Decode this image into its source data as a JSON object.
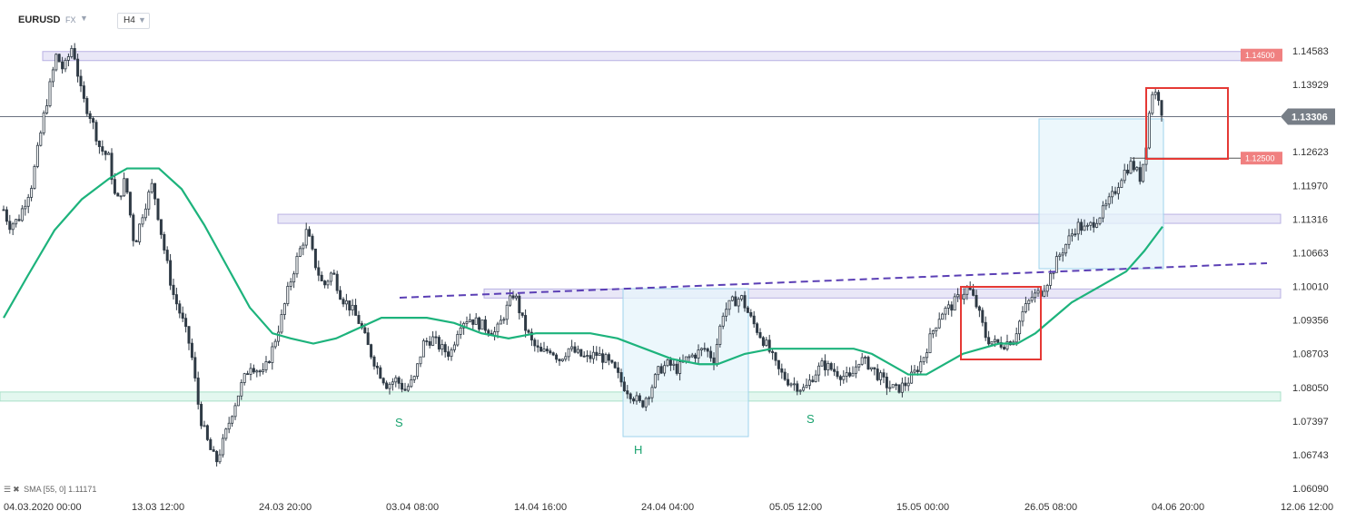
{
  "header": {
    "symbol": "EURUSD",
    "market": "FX",
    "timeframe": "H4"
  },
  "indicator": {
    "label": "SMA [55, 0] 1.11171",
    "icons": [
      "list-icon",
      "close-icon"
    ]
  },
  "colors": {
    "candle": "#2f3a45",
    "sma": "#1db37c",
    "zone_resistance": "#e9e7f7",
    "zone_support": "#e3f7ef",
    "pattern_box": "#e6f4fb",
    "highlight_box": "#e53935",
    "trendline": "#5b3fb5",
    "price_badge": "#777e87",
    "level_badge": "#f08080"
  },
  "chart_data": {
    "type": "candlestick",
    "symbol": "EURUSD",
    "timeframe": "H4",
    "ylim": [
      1.06,
      1.15
    ],
    "y_ticks": [
      "1.14583",
      "1.13929",
      "1.13306",
      "1.12623",
      "1.11970",
      "1.11316",
      "1.10663",
      "1.10010",
      "1.09356",
      "1.08703",
      "1.08050",
      "1.07397",
      "1.06743",
      "1.06090"
    ],
    "x_ticks": [
      "04.03.2020  00:00",
      "13.03  12:00",
      "24.03  20:00",
      "03.04  08:00",
      "14.04  16:00",
      "24.04  04:00",
      "05.05  12:00",
      "15.05  00:00",
      "26.05  08:00",
      "04.06  20:00",
      "12.06  12:00"
    ],
    "current_price": {
      "value": 1.13306,
      "label": "1.13306"
    },
    "levels": [
      {
        "value": 1.145,
        "label": "1.14500"
      },
      {
        "value": 1.125,
        "label": "1.12500"
      }
    ],
    "zones": [
      {
        "type": "resistance",
        "from": 1.1444,
        "to": 1.1457
      },
      {
        "type": "resistance",
        "from": 1.1129,
        "to": 1.1141
      },
      {
        "type": "resistance",
        "from": 1.0982,
        "to": 1.0996
      },
      {
        "type": "support",
        "from": 1.0779,
        "to": 1.0796
      }
    ],
    "pattern_labels": [
      "S",
      "H",
      "S"
    ],
    "pattern": "inverse head and shoulders",
    "sma_period": 55,
    "sma_last": 1.11171,
    "closes_anchor_path": [
      [
        0,
        1.117
      ],
      [
        10,
        1.112
      ],
      [
        20,
        1.113
      ],
      [
        35,
        1.12
      ],
      [
        48,
        1.133
      ],
      [
        55,
        1.139
      ],
      [
        62,
        1.145
      ],
      [
        70,
        1.142
      ],
      [
        80,
        1.147
      ],
      [
        90,
        1.137
      ],
      [
        100,
        1.133
      ],
      [
        110,
        1.127
      ],
      [
        120,
        1.125
      ],
      [
        128,
        1.116
      ],
      [
        138,
        1.121
      ],
      [
        148,
        1.108
      ],
      [
        158,
        1.115
      ],
      [
        168,
        1.12
      ],
      [
        180,
        1.108
      ],
      [
        190,
        1.099
      ],
      [
        200,
        1.094
      ],
      [
        210,
        1.088
      ],
      [
        220,
        1.075
      ],
      [
        230,
        1.069
      ],
      [
        238,
        1.066
      ],
      [
        246,
        1.07
      ],
      [
        256,
        1.076
      ],
      [
        266,
        1.081
      ],
      [
        276,
        1.085
      ],
      [
        290,
        1.083
      ],
      [
        300,
        1.088
      ],
      [
        310,
        1.094
      ],
      [
        318,
        1.1
      ],
      [
        328,
        1.106
      ],
      [
        338,
        1.111
      ],
      [
        346,
        1.105
      ],
      [
        356,
        1.1
      ],
      [
        366,
        1.103
      ],
      [
        376,
        1.098
      ],
      [
        386,
        1.096
      ],
      [
        396,
        1.093
      ],
      [
        406,
        1.088
      ],
      [
        416,
        1.084
      ],
      [
        426,
        1.081
      ],
      [
        436,
        1.082
      ],
      [
        446,
        1.08
      ],
      [
        456,
        1.082
      ],
      [
        466,
        1.089
      ],
      [
        476,
        1.09
      ],
      [
        486,
        1.088
      ],
      [
        496,
        1.087
      ],
      [
        506,
        1.093
      ],
      [
        516,
        1.094
      ],
      [
        526,
        1.093
      ],
      [
        536,
        1.092
      ],
      [
        546,
        1.091
      ],
      [
        556,
        1.095
      ],
      [
        566,
        1.099
      ],
      [
        576,
        1.093
      ],
      [
        586,
        1.089
      ],
      [
        596,
        1.087
      ],
      [
        606,
        1.088
      ],
      [
        616,
        1.086
      ],
      [
        626,
        1.088
      ],
      [
        636,
        1.087
      ],
      [
        646,
        1.086
      ],
      [
        656,
        1.087
      ],
      [
        666,
        1.086
      ],
      [
        676,
        1.084
      ],
      [
        686,
        1.081
      ],
      [
        696,
        1.079
      ],
      [
        706,
        1.077
      ],
      [
        716,
        1.08
      ],
      [
        726,
        1.084
      ],
      [
        736,
        1.085
      ],
      [
        746,
        1.084
      ],
      [
        756,
        1.086
      ],
      [
        766,
        1.087
      ],
      [
        776,
        1.088
      ],
      [
        786,
        1.086
      ],
      [
        796,
        1.095
      ],
      [
        806,
        1.097
      ],
      [
        816,
        1.098
      ],
      [
        826,
        1.094
      ],
      [
        836,
        1.091
      ],
      [
        846,
        1.088
      ],
      [
        856,
        1.084
      ],
      [
        866,
        1.082
      ],
      [
        876,
        1.081
      ],
      [
        886,
        1.08
      ],
      [
        896,
        1.083
      ],
      [
        906,
        1.085
      ],
      [
        916,
        1.084
      ],
      [
        926,
        1.083
      ],
      [
        936,
        1.082
      ],
      [
        946,
        1.086
      ],
      [
        956,
        1.085
      ],
      [
        966,
        1.083
      ],
      [
        976,
        1.081
      ],
      [
        986,
        1.08
      ],
      [
        996,
        1.081
      ],
      [
        1006,
        1.083
      ],
      [
        1016,
        1.086
      ],
      [
        1026,
        1.091
      ],
      [
        1036,
        1.095
      ],
      [
        1046,
        1.096
      ],
      [
        1056,
        1.098
      ],
      [
        1066,
        1.1
      ],
      [
        1076,
        1.096
      ],
      [
        1086,
        1.09
      ],
      [
        1096,
        1.089
      ],
      [
        1106,
        1.089
      ],
      [
        1116,
        1.09
      ],
      [
        1126,
        1.095
      ],
      [
        1136,
        1.098
      ],
      [
        1146,
        1.099
      ],
      [
        1156,
        1.102
      ],
      [
        1166,
        1.106
      ],
      [
        1176,
        1.109
      ],
      [
        1186,
        1.112
      ],
      [
        1196,
        1.111
      ],
      [
        1206,
        1.113
      ],
      [
        1216,
        1.115
      ],
      [
        1226,
        1.118
      ],
      [
        1236,
        1.122
      ],
      [
        1246,
        1.124
      ],
      [
        1256,
        1.121
      ],
      [
        1262,
        1.128
      ],
      [
        1268,
        1.138
      ],
      [
        1276,
        1.137
      ],
      [
        1280,
        1.1333
      ]
    ],
    "sma_path": [
      [
        4,
        1.094
      ],
      [
        30,
        1.102
      ],
      [
        60,
        1.111
      ],
      [
        90,
        1.117
      ],
      [
        120,
        1.121
      ],
      [
        140,
        1.123
      ],
      [
        175,
        1.123
      ],
      [
        200,
        1.119
      ],
      [
        225,
        1.112
      ],
      [
        250,
        1.104
      ],
      [
        275,
        1.096
      ],
      [
        300,
        1.091
      ],
      [
        320,
        1.09
      ],
      [
        345,
        1.089
      ],
      [
        370,
        1.09
      ],
      [
        395,
        1.092
      ],
      [
        420,
        1.094
      ],
      [
        445,
        1.094
      ],
      [
        470,
        1.094
      ],
      [
        500,
        1.093
      ],
      [
        530,
        1.091
      ],
      [
        560,
        1.09
      ],
      [
        590,
        1.091
      ],
      [
        620,
        1.091
      ],
      [
        650,
        1.091
      ],
      [
        680,
        1.09
      ],
      [
        710,
        1.088
      ],
      [
        740,
        1.086
      ],
      [
        770,
        1.085
      ],
      [
        790,
        1.085
      ],
      [
        820,
        1.087
      ],
      [
        850,
        1.088
      ],
      [
        880,
        1.088
      ],
      [
        910,
        1.088
      ],
      [
        940,
        1.088
      ],
      [
        960,
        1.087
      ],
      [
        980,
        1.085
      ],
      [
        1000,
        1.083
      ],
      [
        1020,
        1.083
      ],
      [
        1040,
        1.085
      ],
      [
        1060,
        1.087
      ],
      [
        1080,
        1.088
      ],
      [
        1100,
        1.089
      ],
      [
        1120,
        1.089
      ],
      [
        1140,
        1.091
      ],
      [
        1160,
        1.094
      ],
      [
        1180,
        1.097
      ],
      [
        1200,
        1.099
      ],
      [
        1220,
        1.101
      ],
      [
        1240,
        1.103
      ],
      [
        1260,
        1.107
      ],
      [
        1280,
        1.1117
      ]
    ]
  }
}
